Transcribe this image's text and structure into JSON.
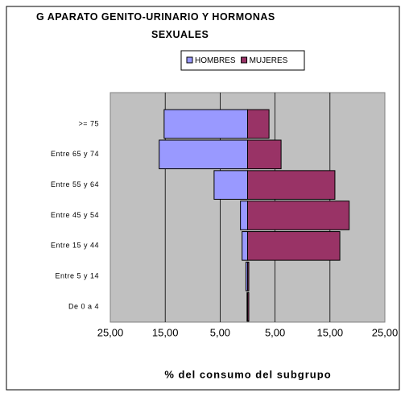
{
  "chart_data": {
    "type": "pyramid",
    "title": "G APARATO GENITO-URINARIO Y HORMONAS SEXUALES",
    "x_label": "% del consumo del subgrupo",
    "categories": [
      ">= 75",
      "Entre 65 y 74",
      "Entre 55 y 64",
      "Entre 45 y 54",
      "Entre 15 y 44",
      "Entre 5 y 14",
      "De 0 a 4"
    ],
    "series": [
      {
        "name": "HOMBRES",
        "color": "#9999ff",
        "values": [
          -15.2,
          -16.1,
          -6.1,
          -1.3,
          -1.0,
          -0.3,
          -0.1
        ]
      },
      {
        "name": "MUJERES",
        "color": "#993366",
        "values": [
          3.9,
          6.1,
          15.9,
          18.5,
          16.8,
          0.1,
          0.05
        ]
      }
    ],
    "xlim": [
      -25,
      25
    ],
    "xticks": [
      {
        "value": -25,
        "label": "25,00"
      },
      {
        "value": -15,
        "label": "15,00"
      },
      {
        "value": -5,
        "label": "5,00"
      },
      {
        "value": 5,
        "label": "5,00"
      },
      {
        "value": 15,
        "label": "15,00"
      },
      {
        "value": 25,
        "label": "25,00"
      }
    ],
    "grid": true,
    "legend": "top"
  }
}
